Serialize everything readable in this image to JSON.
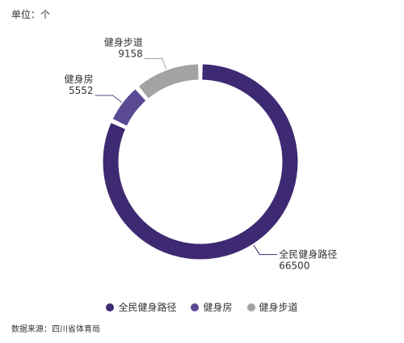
{
  "unit_label": "单位：个",
  "source_label": "数据来源：四川省体育局",
  "chart_data": {
    "type": "pie",
    "style": "donut",
    "legend_position": "bottom",
    "series": [
      {
        "name": "全民健身路径",
        "value": 66500,
        "color": "#3e2a72"
      },
      {
        "name": "健身房",
        "value": 5552,
        "color": "#5a4a94"
      },
      {
        "name": "健身步道",
        "value": 9158,
        "color": "#a3a3a3"
      }
    ]
  }
}
